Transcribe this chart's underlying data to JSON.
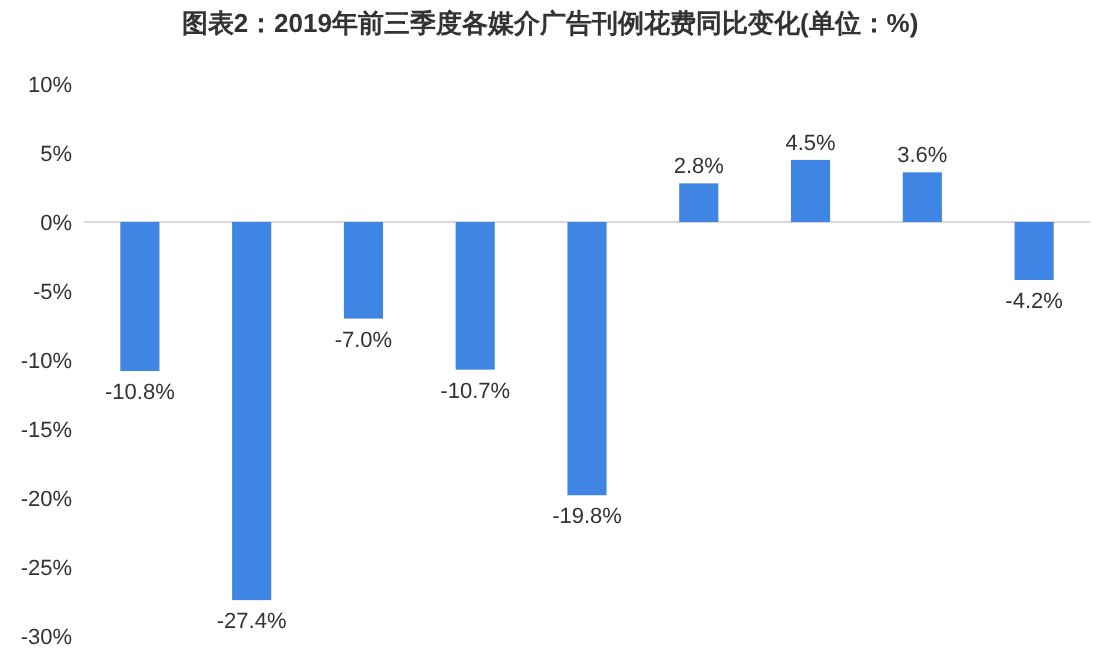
{
  "chart_data": {
    "type": "bar",
    "title": "图表2：2019年前三季度各媒介广告刊例花费同比变化(单位：%)",
    "categories": [
      null,
      null,
      null,
      null,
      null,
      null,
      null,
      null,
      null
    ],
    "values": [
      -10.8,
      -27.4,
      -7.0,
      -10.7,
      -19.8,
      2.8,
      4.5,
      3.6,
      -4.2
    ],
    "value_labels": [
      "-10.8%",
      "-27.4%",
      "-7.0%",
      "-10.7%",
      "-19.8%",
      "2.8%",
      "4.5%",
      "3.6%",
      "-4.2%"
    ],
    "color": "#3f85e4",
    "ylim": [
      -30,
      10
    ],
    "yticks": [
      {
        "value": 10,
        "label": "10%"
      },
      {
        "value": 5,
        "label": "5%"
      },
      {
        "value": 0,
        "label": "0%"
      },
      {
        "value": -5,
        "label": "-5%"
      },
      {
        "value": -10,
        "label": "-10%"
      },
      {
        "value": -15,
        "label": "-15%"
      },
      {
        "value": -20,
        "label": "-20%"
      },
      {
        "value": -25,
        "label": "-25%"
      },
      {
        "value": -30,
        "label": "-30%"
      }
    ]
  }
}
